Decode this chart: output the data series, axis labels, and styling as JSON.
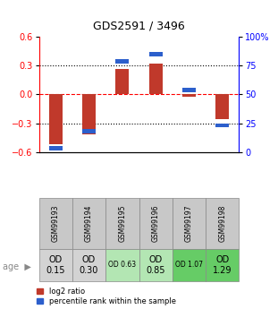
{
  "title": "GDS2591 / 3496",
  "samples": [
    "GSM99193",
    "GSM99194",
    "GSM99195",
    "GSM99196",
    "GSM99197",
    "GSM99198"
  ],
  "log2_ratio": [
    -0.52,
    -0.42,
    0.27,
    0.32,
    -0.02,
    -0.26
  ],
  "percentile_rank": [
    3,
    18,
    79,
    85,
    54,
    23
  ],
  "ylim_left": [
    -0.6,
    0.6
  ],
  "ylim_right": [
    0,
    100
  ],
  "yticks_left": [
    -0.6,
    -0.3,
    0,
    0.3,
    0.6
  ],
  "yticks_right": [
    0,
    25,
    50,
    75,
    100
  ],
  "ytick_labels_right": [
    "0",
    "25",
    "50",
    "75",
    "100%"
  ],
  "hlines_dotted": [
    -0.3,
    0.3
  ],
  "hline_red": 0.0,
  "bar_color_red": "#c0392b",
  "bar_color_blue": "#2c5fcc",
  "age_labels": [
    "OD\n0.15",
    "OD\n0.30",
    "OD 0.63",
    "OD\n0.85",
    "OD 1.07",
    "OD\n1.29"
  ],
  "age_bg_colors": [
    "#d3d3d3",
    "#d3d3d3",
    "#b3e6b3",
    "#b3e6b3",
    "#66cc66",
    "#66cc66"
  ],
  "age_fontsize_large": [
    true,
    true,
    false,
    true,
    false,
    true
  ],
  "sample_bg_color": "#c8c8c8",
  "legend_red_label": "log2 ratio",
  "legend_blue_label": "percentile rank within the sample",
  "bar_width": 0.4
}
